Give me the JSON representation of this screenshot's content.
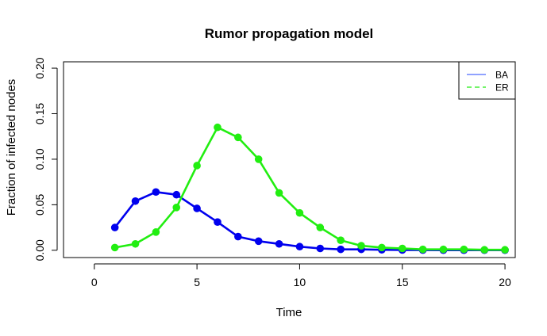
{
  "chart_data": {
    "type": "line",
    "title": "Rumor propagation model",
    "xlabel": "Time",
    "ylabel": "Fraction of infected nodes",
    "xlim": [
      -1.5,
      20.5
    ],
    "ylim": [
      -0.008,
      0.207
    ],
    "x_ticks": [
      "0",
      "5",
      "10",
      "15",
      "20"
    ],
    "y_ticks": [
      "0.00",
      "0.05",
      "0.10",
      "0.15",
      "0.20"
    ],
    "legend_position": "top-right",
    "x": [
      1,
      2,
      3,
      4,
      5,
      6,
      7,
      8,
      9,
      10,
      11,
      12,
      13,
      14,
      15,
      16,
      17,
      18,
      19,
      20
    ],
    "series": [
      {
        "name": "BA",
        "color": "#0000ee",
        "legend_color": "#4d6bff",
        "values": [
          0.025,
          0.054,
          0.064,
          0.061,
          0.046,
          0.031,
          0.015,
          0.01,
          0.007,
          0.004,
          0.002,
          0.001,
          0.001,
          0.0005,
          0.0003,
          0.0002,
          0.0001,
          0.0001,
          0.0001,
          0.0001
        ]
      },
      {
        "name": "ER",
        "color": "#22ee11",
        "legend_color": "#22ee11",
        "values": [
          0.003,
          0.007,
          0.02,
          0.047,
          0.093,
          0.135,
          0.124,
          0.1,
          0.063,
          0.041,
          0.025,
          0.011,
          0.005,
          0.003,
          0.002,
          0.001,
          0.001,
          0.001,
          0.0005,
          0.0005
        ]
      }
    ]
  }
}
